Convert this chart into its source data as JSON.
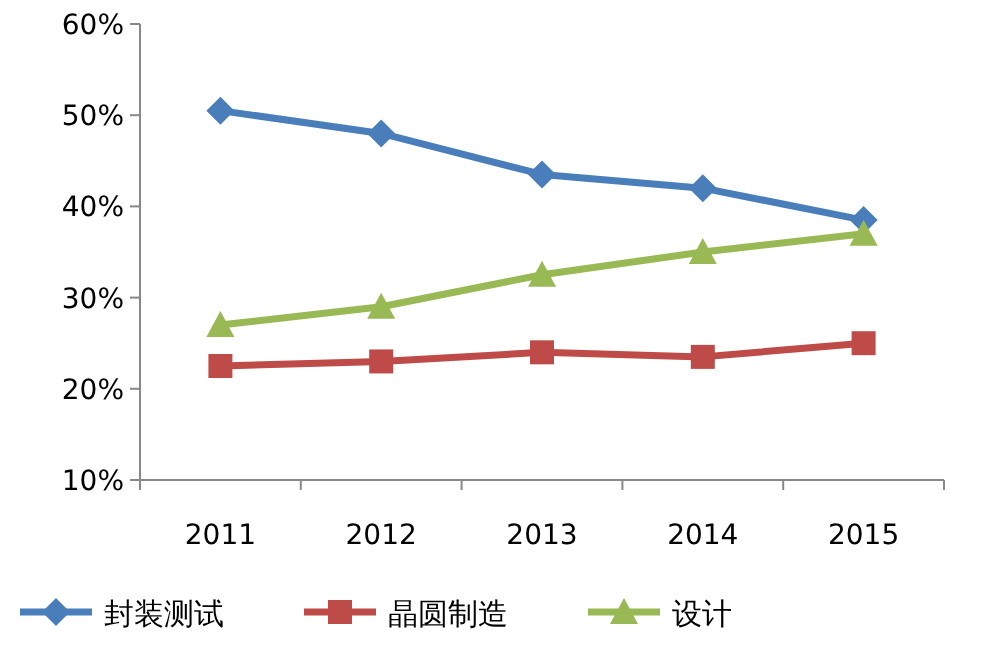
{
  "chart_data": {
    "type": "line",
    "categories": [
      "2011",
      "2012",
      "2013",
      "2014",
      "2015"
    ],
    "ylim": [
      10,
      60
    ],
    "yticks": [
      {
        "value": 10,
        "label": "10%"
      },
      {
        "value": 20,
        "label": "20%"
      },
      {
        "value": 30,
        "label": "30%"
      },
      {
        "value": 40,
        "label": "40%"
      },
      {
        "value": 50,
        "label": "50%"
      },
      {
        "value": 60,
        "label": "60%"
      }
    ],
    "legend": "bottom",
    "series": [
      {
        "name": "封装测试",
        "color": "#4a7ebb",
        "marker": "diamond",
        "values": [
          50.5,
          48,
          43.5,
          42,
          38.5
        ]
      },
      {
        "name": "晶圆制造",
        "color": "#be4b48",
        "marker": "square",
        "values": [
          22.5,
          23,
          24,
          23.5,
          25
        ]
      },
      {
        "name": "设计",
        "color": "#98b954",
        "marker": "triangle",
        "values": [
          27,
          29,
          32.5,
          35,
          37
        ]
      }
    ]
  }
}
